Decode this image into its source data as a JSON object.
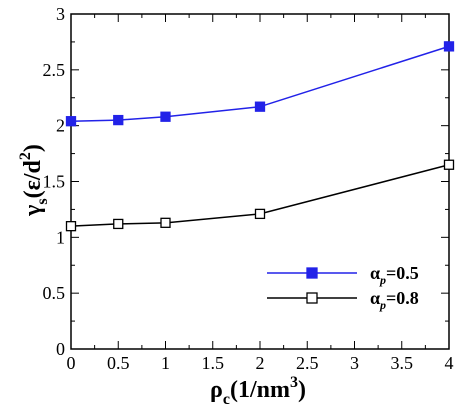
{
  "chart_data": {
    "type": "line",
    "xlim": [
      0,
      4
    ],
    "ylim": [
      0,
      3
    ],
    "x_ticks": [
      0,
      0.5,
      1,
      1.5,
      2,
      2.5,
      3,
      3.5,
      4
    ],
    "x_tick_labels": [
      "0",
      "0.5",
      "1",
      "1.5",
      "2",
      "2.5",
      "3",
      "3.5",
      "4"
    ],
    "y_ticks": [
      0,
      0.5,
      1,
      1.5,
      2,
      2.5,
      3
    ],
    "y_tick_labels": [
      "0",
      "0.5",
      "1",
      "1.5",
      "2",
      "2.5",
      "3"
    ],
    "xlabel": {
      "base": "ρ",
      "sub": "c",
      "rest": "(1/nm",
      "sup": "3",
      "end": ")"
    },
    "ylabel": {
      "base": "γ",
      "sub": "s",
      "rest": "(ε/d",
      "sup": "2",
      "end": ")"
    },
    "grid": false,
    "legend_position": "lower-right",
    "series": [
      {
        "name": "αp=0.5",
        "legend": {
          "base": "α",
          "sub": "p",
          "rest": "=0.5"
        },
        "color": "#2222e8",
        "marker": "filled-square",
        "x": [
          0,
          0.5,
          1,
          2,
          4
        ],
        "y": [
          2.04,
          2.05,
          2.08,
          2.17,
          2.71
        ]
      },
      {
        "name": "αp=0.8",
        "legend": {
          "base": "α",
          "sub": "p",
          "rest": "=0.8"
        },
        "color": "#000000",
        "marker": "open-square",
        "x": [
          0,
          0.5,
          1,
          2,
          4
        ],
        "y": [
          1.1,
          1.12,
          1.13,
          1.21,
          1.65
        ]
      }
    ]
  }
}
